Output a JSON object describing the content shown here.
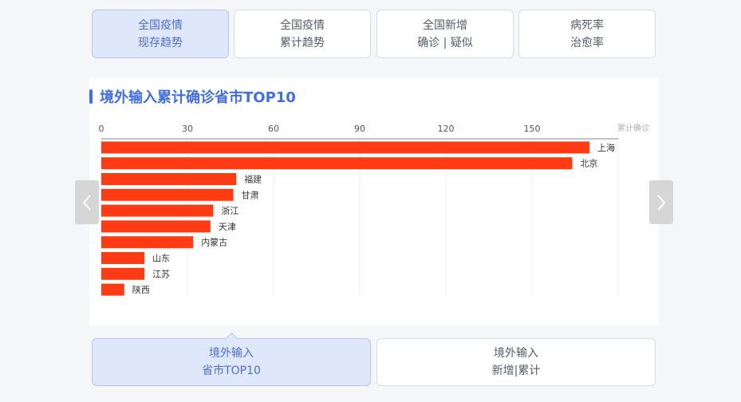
{
  "top_tabs": [
    {
      "line1": "全国疫情",
      "line2": "现存趋势",
      "active": true
    },
    {
      "line1": "全国疫情",
      "line2": "累计趋势",
      "active": false
    },
    {
      "line1": "全国新增",
      "line2": "确诊 | 疑似",
      "active": false
    },
    {
      "line1": "病死率",
      "line2": "治愈率",
      "active": false
    }
  ],
  "card": {
    "title": "境外输入累计确诊省市TOP10"
  },
  "bottom_tabs": [
    {
      "line1": "境外输入",
      "line2": "省市TOP10",
      "active": true
    },
    {
      "line1": "境外输入",
      "line2": "新增|累计",
      "active": false
    }
  ],
  "colors": {
    "accent": "#3f6ee8",
    "bar": "#ff3b13",
    "active_tab_bg": "#dfe7fb"
  },
  "icons": {
    "left_arrow": "chevron-left-icon",
    "right_arrow": "chevron-right-icon"
  },
  "chart_data": {
    "type": "bar",
    "orientation": "horizontal",
    "title": "境外输入累计确诊省市TOP10",
    "xlabel": "累计确诊",
    "xlim": [
      0,
      180
    ],
    "xticks": [
      0,
      30,
      60,
      90,
      120,
      150
    ],
    "grid": true,
    "categories": [
      "上海",
      "北京",
      "福建",
      "甘肃",
      "浙江",
      "天津",
      "内蒙古",
      "山东",
      "江苏",
      "陕西"
    ],
    "values": [
      170,
      164,
      47,
      46,
      39,
      38,
      32,
      15,
      15,
      8
    ]
  }
}
